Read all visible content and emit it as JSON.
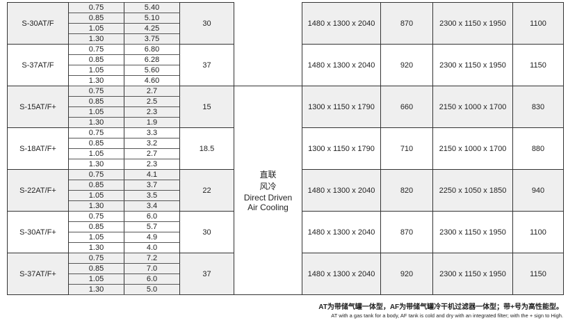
{
  "table": {
    "rows": [
      {
        "model": "S-30AT/F",
        "pressure": [
          "0.75",
          "0.85",
          "1.05",
          "1.30"
        ],
        "flow": [
          "5.40",
          "5.10",
          "4.25",
          "3.75"
        ],
        "power": "30",
        "dims": "1480 x 1300 x 2040",
        "weight": "870",
        "dims2": "2300 x 1150 x 1950",
        "weight2": "1100"
      },
      {
        "model": "S-37AT/F",
        "pressure": [
          "0.75",
          "0.85",
          "1.05",
          "1.30"
        ],
        "flow": [
          "6.80",
          "6.28",
          "5.60",
          "4.60"
        ],
        "power": "37",
        "dims": "1480 x 1300 x 2040",
        "weight": "920",
        "dims2": "2300 x 1150 x 1950",
        "weight2": "1150"
      },
      {
        "model": "S-15AT/F+",
        "pressure": [
          "0.75",
          "0.85",
          "1.05",
          "1.30"
        ],
        "flow": [
          "2.7",
          "2.5",
          "2.3",
          "1.9"
        ],
        "power": "15",
        "dims": "1300 x 1150 x 1790",
        "weight": "660",
        "dims2": "2150 x 1000 x 1700",
        "weight2": "830"
      },
      {
        "model": "S-18AT/F+",
        "pressure": [
          "0.75",
          "0.85",
          "1.05",
          "1.30"
        ],
        "flow": [
          "3.3",
          "3.2",
          "2.7",
          "2.3"
        ],
        "power": "18.5",
        "dims": "1300 x 1150 x 1790",
        "weight": "710",
        "dims2": "2150 x 1000 x 1700",
        "weight2": "880"
      },
      {
        "model": "S-22AT/F+",
        "pressure": [
          "0.75",
          "0.85",
          "1.05",
          "1.30"
        ],
        "flow": [
          "4.1",
          "3.7",
          "3.5",
          "3.4"
        ],
        "power": "22",
        "dims": "1480 x 1300 x 2040",
        "weight": "820",
        "dims2": "2250 x 1050 x 1850",
        "weight2": "940"
      },
      {
        "model": "S-30AT/F+",
        "pressure": [
          "0.75",
          "0.85",
          "1.05",
          "1.30"
        ],
        "flow": [
          "6.0",
          "5.7",
          "4.9",
          "4.0"
        ],
        "power": "30",
        "dims": "1480 x 1300 x 2040",
        "weight": "870",
        "dims2": "2300 x 1150 x 1950",
        "weight2": "1100"
      },
      {
        "model": "S-37AT/F+",
        "pressure": [
          "0.75",
          "0.85",
          "1.05",
          "1.30"
        ],
        "flow": [
          "7.2",
          "7.0",
          "6.0",
          "5.0"
        ],
        "power": "37",
        "dims": "1480 x 1300 x 2040",
        "weight": "920",
        "dims2": "2300 x 1150 x 1950",
        "weight2": "1150"
      }
    ],
    "cooling": {
      "zh1": "直联",
      "zh2": "风冷",
      "en1": "Direct Driven",
      "en2": "Air Cooling"
    }
  },
  "notes": {
    "zh": "AT为带储气罐一体型，AF为带储气罐冷干机过滤器一体型；带+号为高性能型。",
    "en": "AT with a gas tank for a body, AF tank is cold and dry with an integrated filter; with the + sign to High."
  },
  "colors": {
    "shade": "#efefef",
    "line": "#333333"
  }
}
